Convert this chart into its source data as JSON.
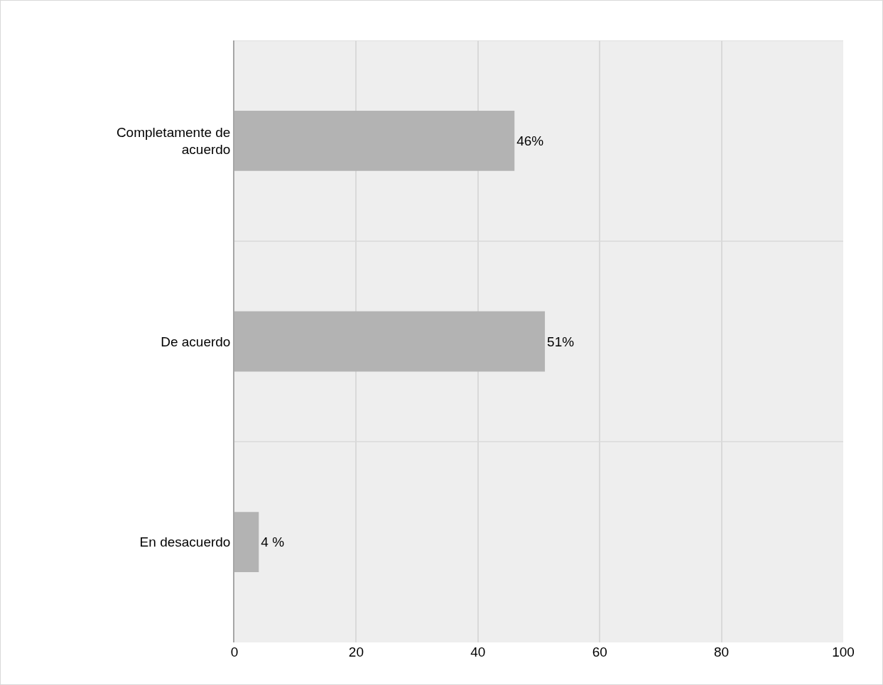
{
  "chart_data": {
    "type": "bar",
    "orientation": "horizontal",
    "categories": [
      "Completamente de acuerdo",
      "De acuerdo",
      "En desacuerdo"
    ],
    "values": [
      46,
      51,
      4
    ],
    "value_labels": [
      "46%",
      "51%",
      "4 %"
    ],
    "color": "#b3b3b3",
    "xlim": [
      0,
      100
    ],
    "xticks": [
      0,
      20,
      40,
      60,
      80,
      100
    ],
    "grid": true
  }
}
